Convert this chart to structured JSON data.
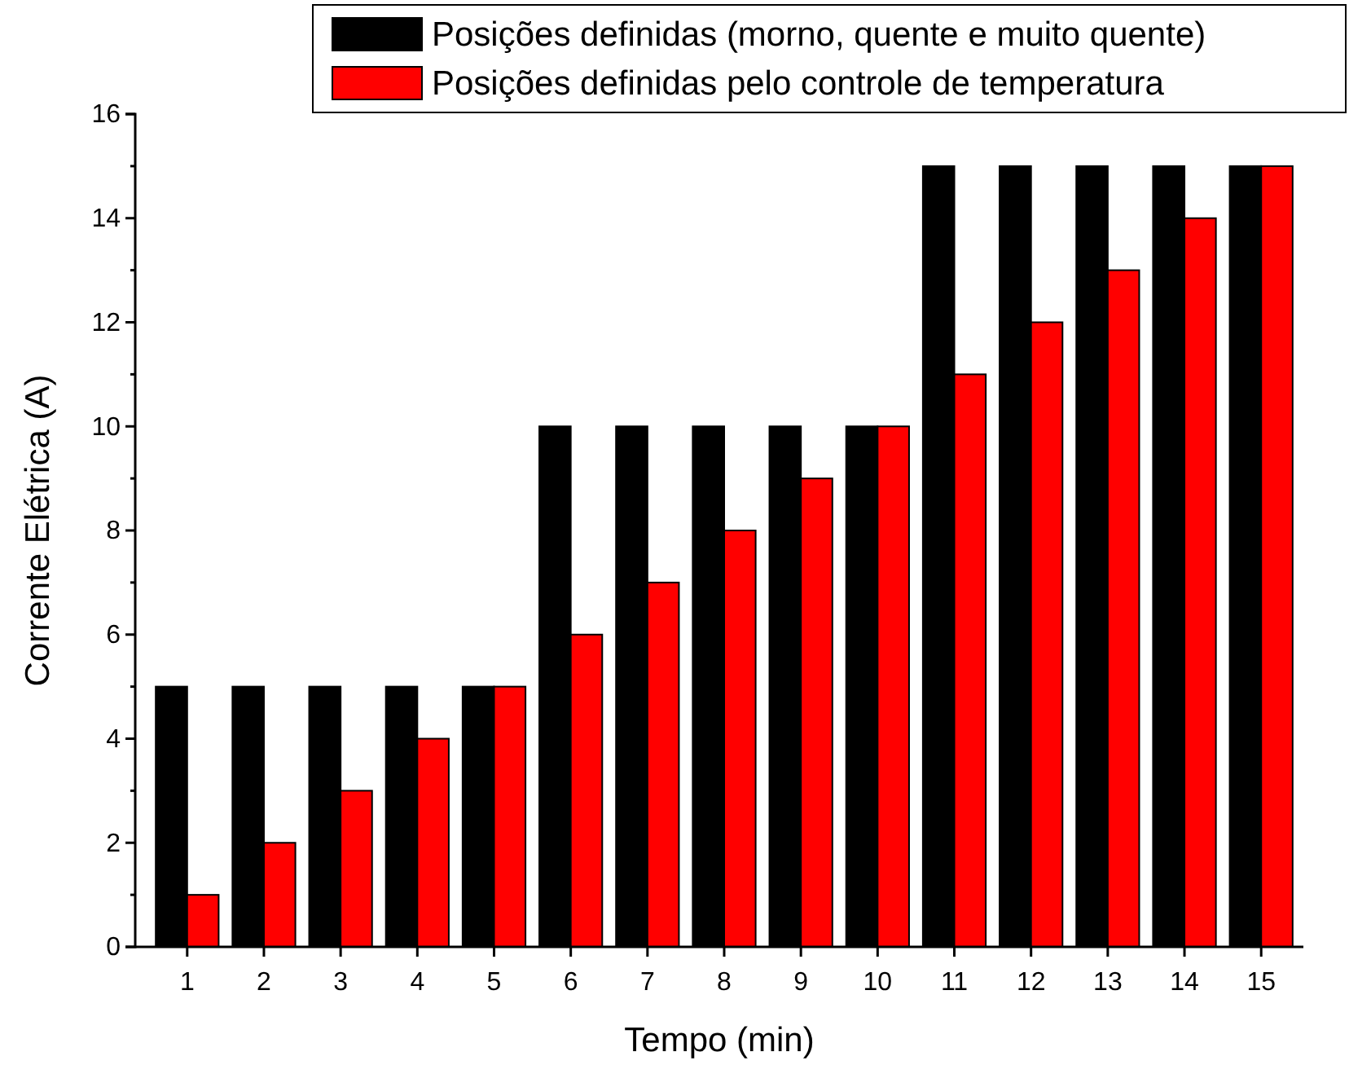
{
  "chart_data": {
    "type": "bar",
    "xlabel": "Tempo (min)",
    "ylabel": "Corrente Elétrica (A)",
    "categories": [
      "1",
      "2",
      "3",
      "4",
      "5",
      "6",
      "7",
      "8",
      "9",
      "10",
      "11",
      "12",
      "13",
      "14",
      "15"
    ],
    "series": [
      {
        "name": "Posições definidas (morno, quente e muito quente)",
        "color": "#000000",
        "values": [
          5,
          5,
          5,
          5,
          5,
          10,
          10,
          10,
          10,
          10,
          15,
          15,
          15,
          15,
          15
        ]
      },
      {
        "name": "Posições definidas pelo controle de temperatura",
        "color": "#ff0000",
        "values": [
          1,
          2,
          3,
          4,
          5,
          6,
          7,
          8,
          9,
          10,
          11,
          12,
          13,
          14,
          15
        ]
      }
    ],
    "ylim": [
      0,
      16
    ],
    "yticks": [
      0,
      {
        "value": 1,
        "label": null
      },
      2,
      {
        "value": 3,
        "label": null
      },
      4,
      {
        "value": 5,
        "label": null
      },
      6,
      {
        "value": 7,
        "label": null
      },
      8,
      {
        "value": 9,
        "label": null
      },
      10,
      {
        "value": 11,
        "label": null
      },
      12,
      {
        "value": 13,
        "label": null
      },
      14,
      {
        "value": 15,
        "label": null
      },
      16
    ],
    "legend": "top right",
    "grid": false
  }
}
